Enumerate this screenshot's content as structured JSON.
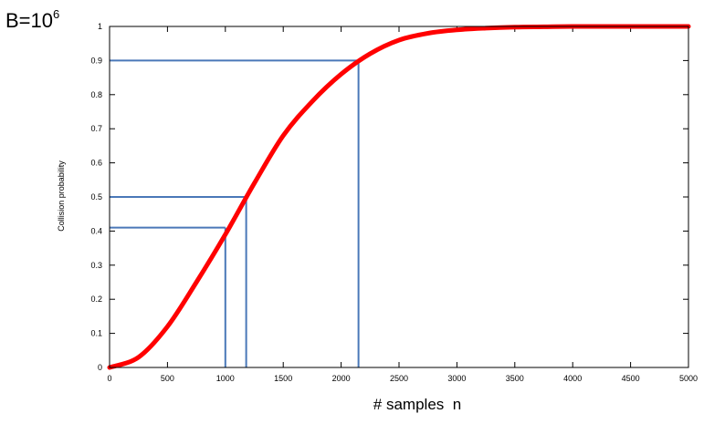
{
  "chart_data": {
    "type": "line",
    "title": "",
    "corner_label": {
      "base": "B=10",
      "exponent": "6"
    },
    "xlabel": "# samples  n",
    "ylabel": "Collision probability",
    "xlim": [
      0,
      5000
    ],
    "ylim": [
      0,
      1
    ],
    "x_ticks": [
      "0",
      "500",
      "1000",
      "1500",
      "2000",
      "2500",
      "3000",
      "3500",
      "4000",
      "4500",
      "5000"
    ],
    "y_ticks": [
      "0",
      "0.1",
      "0.2",
      "0.3",
      "0.4",
      "0.5",
      "0.6",
      "0.7",
      "0.8",
      "0.9",
      "1"
    ],
    "grid": false,
    "legend": "none",
    "series": [
      {
        "color": "#ff0000",
        "x": [
          0,
          250,
          500,
          750,
          1000,
          1250,
          1500,
          1750,
          2000,
          2250,
          2500,
          2750,
          3000,
          3250,
          3500,
          3750,
          4000,
          4500,
          5000
        ],
        "y": [
          0,
          0.03,
          0.12,
          0.25,
          0.39,
          0.54,
          0.68,
          0.78,
          0.86,
          0.92,
          0.96,
          0.98,
          0.99,
          0.995,
          0.998,
          0.999,
          1.0,
          1.0,
          1.0
        ]
      }
    ],
    "reference_lines": {
      "color": "#4a78b8",
      "points": [
        {
          "x": 1000,
          "y": 0.41
        },
        {
          "x": 1180,
          "y": 0.5
        },
        {
          "x": 2150,
          "y": 0.9
        }
      ]
    }
  }
}
